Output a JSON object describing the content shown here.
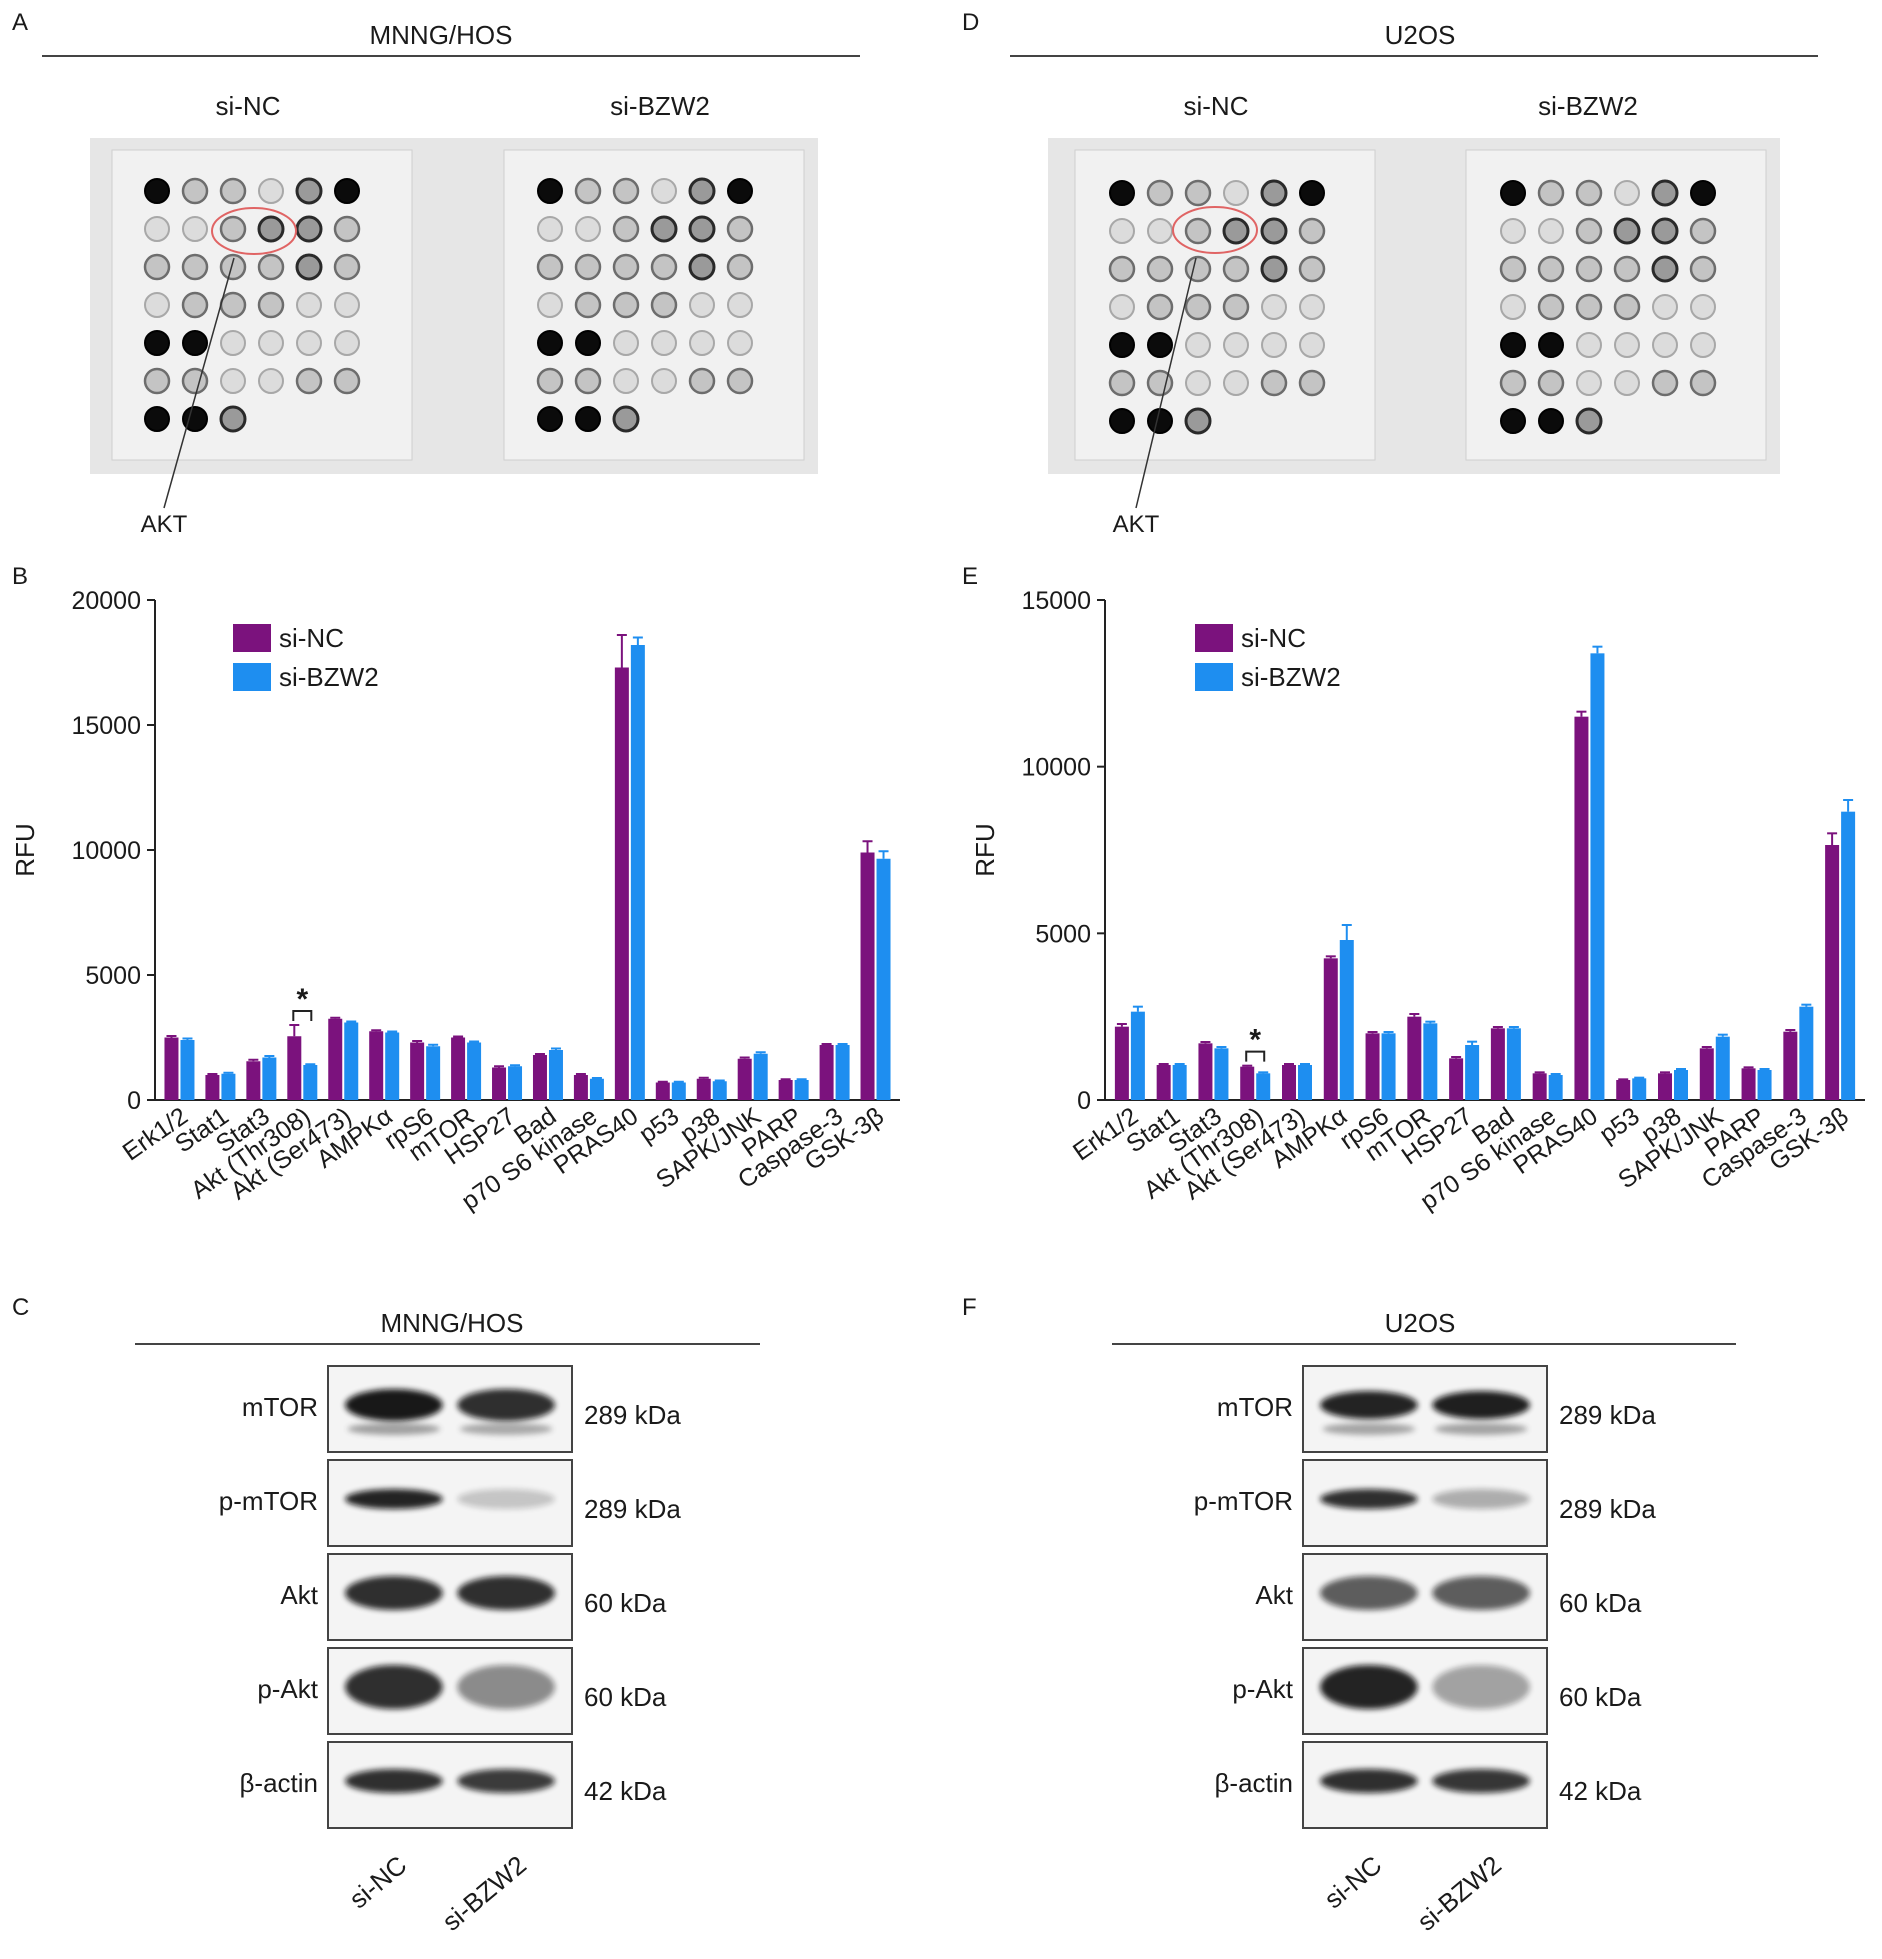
{
  "panels": {
    "A": {
      "letter": "A",
      "cell_line": "MNNG/HOS",
      "groups": [
        "si-NC",
        "si-BZW2"
      ],
      "callout": "AKT"
    },
    "D": {
      "letter": "D",
      "cell_line": "U2OS",
      "groups": [
        "si-NC",
        "si-BZW2"
      ],
      "callout": "AKT"
    },
    "B": {
      "letter": "B"
    },
    "E": {
      "letter": "E"
    },
    "C": {
      "letter": "C",
      "cell_line": "MNNG/HOS"
    },
    "F": {
      "letter": "F",
      "cell_line": "U2OS"
    }
  },
  "chart_data": [
    {
      "id": "B",
      "type": "bar",
      "cell_line": "MNNG/HOS",
      "ylabel": "RFU",
      "ylim": [
        0,
        20000
      ],
      "yticks": [
        0,
        5000,
        10000,
        15000,
        20000
      ],
      "categories": [
        "Erk1/2",
        "Stat1",
        "Stat3",
        "Akt (Thr308)",
        "Akt (Ser473)",
        "AMPKα",
        "rpS6",
        "mTOR",
        "HSP27",
        "Bad",
        "p70 S6 kinase",
        "PRAS40",
        "p53",
        "p38",
        "SAPK/JNK",
        "PARP",
        "Caspase-3",
        "GSK-3β"
      ],
      "series": [
        {
          "name": "si-NC",
          "color": "#7b127d",
          "values": [
            2500,
            1000,
            1550,
            2550,
            3250,
            2750,
            2300,
            2500,
            1300,
            1800,
            1000,
            17300,
            700,
            850,
            1650,
            800,
            2200,
            9900
          ],
          "errors": [
            60,
            40,
            60,
            450,
            40,
            40,
            60,
            40,
            50,
            40,
            40,
            1300,
            30,
            40,
            50,
            30,
            40,
            450
          ]
        },
        {
          "name": "si-BZW2",
          "color": "#1e8ef0",
          "values": [
            2400,
            1050,
            1700,
            1400,
            3100,
            2700,
            2150,
            2300,
            1350,
            2000,
            850,
            18200,
            700,
            750,
            1850,
            800,
            2200,
            9650
          ],
          "errors": [
            60,
            40,
            60,
            30,
            40,
            40,
            60,
            40,
            40,
            60,
            30,
            300,
            30,
            30,
            60,
            30,
            40,
            300
          ]
        }
      ],
      "significance": [
        {
          "category": "Akt (Thr308)",
          "label": "*"
        }
      ]
    },
    {
      "id": "E",
      "type": "bar",
      "cell_line": "U2OS",
      "ylabel": "RFU",
      "ylim": [
        0,
        15000
      ],
      "yticks": [
        0,
        5000,
        10000,
        15000
      ],
      "categories": [
        "Erk1/2",
        "Stat1",
        "Stat3",
        "Akt (Thr308)",
        "Akt (Ser473)",
        "AMPKα",
        "rpS6",
        "mTOR",
        "HSP27",
        "Bad",
        "p70 S6 kinase",
        "PRAS40",
        "p53",
        "p38",
        "SAPK/JNK",
        "PARP",
        "Caspase-3",
        "GSK-3β"
      ],
      "series": [
        {
          "name": "si-NC",
          "color": "#7b127d",
          "values": [
            2200,
            1050,
            1700,
            1000,
            1050,
            4250,
            2000,
            2500,
            1250,
            2150,
            800,
            11500,
            600,
            800,
            1550,
            950,
            2050,
            7650
          ],
          "errors": [
            80,
            30,
            40,
            30,
            30,
            60,
            40,
            80,
            40,
            40,
            30,
            150,
            20,
            30,
            40,
            30,
            50,
            350
          ]
        },
        {
          "name": "si-BZW2",
          "color": "#1e8ef0",
          "values": [
            2650,
            1050,
            1550,
            800,
            1050,
            4800,
            2000,
            2300,
            1650,
            2150,
            750,
            13400,
            650,
            900,
            1900,
            900,
            2800,
            8650
          ],
          "errors": [
            150,
            30,
            40,
            30,
            30,
            450,
            40,
            50,
            100,
            40,
            30,
            200,
            20,
            30,
            60,
            30,
            60,
            350
          ]
        }
      ],
      "significance": [
        {
          "category": "Akt (Thr308)",
          "label": "*"
        }
      ]
    }
  ],
  "blots_C": {
    "cell_line": "MNNG/HOS",
    "lanes": [
      "si-NC",
      "si-BZW2"
    ],
    "rows": [
      {
        "protein": "mTOR",
        "size": "289 kDa"
      },
      {
        "protein": "p-mTOR",
        "size": "289 kDa"
      },
      {
        "protein": "Akt",
        "size": "60 kDa"
      },
      {
        "protein": "p-Akt",
        "size": "60 kDa"
      },
      {
        "protein": "β-actin",
        "size": "42 kDa"
      }
    ]
  },
  "blots_F": {
    "cell_line": "U2OS",
    "lanes": [
      "si-NC",
      "si-BZW2"
    ],
    "rows": [
      {
        "protein": "mTOR",
        "size": "289 kDa"
      },
      {
        "protein": "p-mTOR",
        "size": "289 kDa"
      },
      {
        "protein": "Akt",
        "size": "60 kDa"
      },
      {
        "protein": "p-Akt",
        "size": "60 kDa"
      },
      {
        "protein": "β-actin",
        "size": "42 kDa"
      }
    ]
  }
}
